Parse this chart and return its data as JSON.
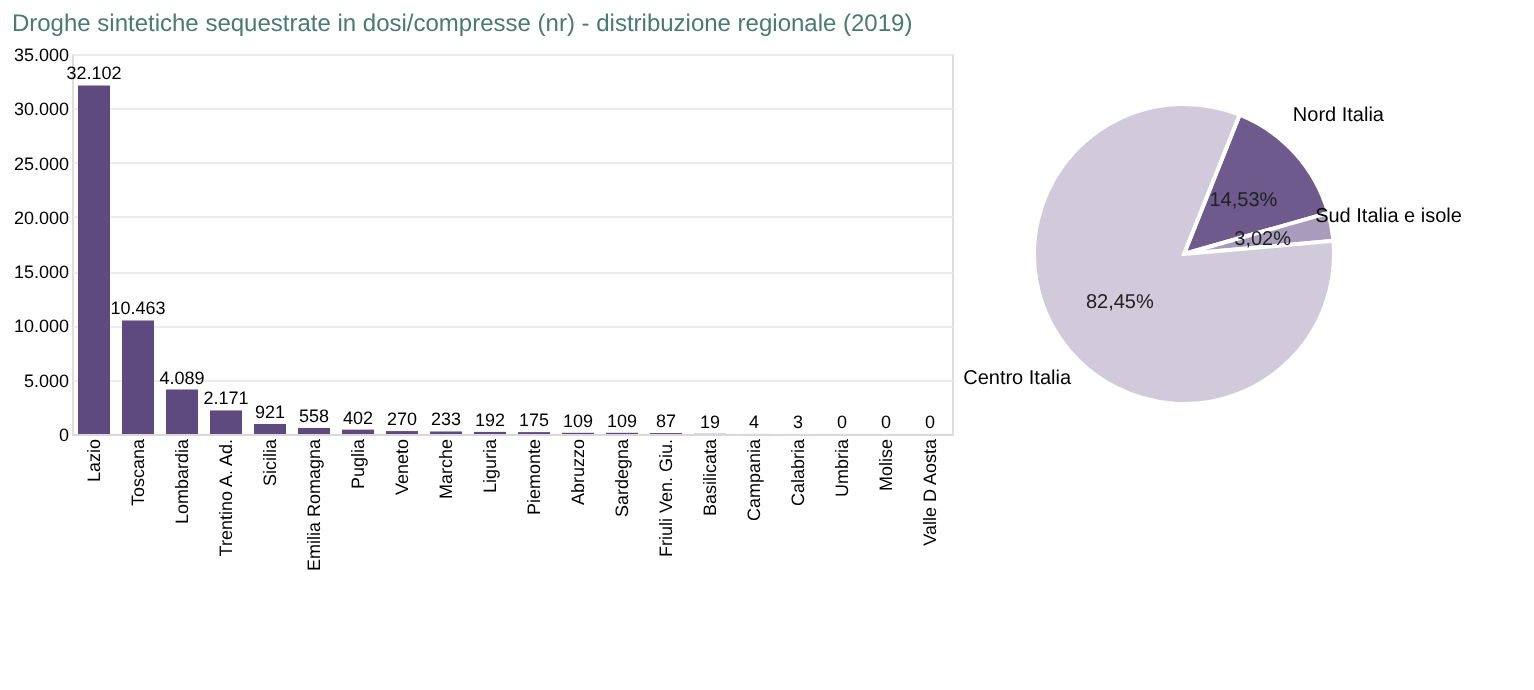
{
  "chart_data": [
    {
      "type": "bar",
      "title": "Droghe sintetiche sequestrate in dosi/compresse (nr) - distribuzione regionale (2019)",
      "categories": [
        "Lazio",
        "Toscana",
        "Lombardia",
        "Trentino A. Ad.",
        "Sicilia",
        "Emilia Romagna",
        "Puglia",
        "Veneto",
        "Marche",
        "Liguria",
        "Piemonte",
        "Abruzzo",
        "Sardegna",
        "Friuli Ven. Giu.",
        "Basilicata",
        "Campania",
        "Calabria",
        "Umbria",
        "Molise",
        "Valle D Aosta"
      ],
      "values": [
        32102,
        10463,
        4089,
        2171,
        921,
        558,
        402,
        270,
        233,
        192,
        175,
        109,
        109,
        87,
        19,
        4,
        3,
        0,
        0,
        0
      ],
      "value_labels": [
        "32.102",
        "10.463",
        "4.089",
        "2.171",
        "921",
        "558",
        "402",
        "270",
        "233",
        "192",
        "175",
        "109",
        "109",
        "87",
        "19",
        "4",
        "3",
        "0",
        "0",
        "0"
      ],
      "color": "#5e4a7e",
      "ylim": [
        0,
        35000
      ],
      "yticks": [
        {
          "value": 0,
          "label": "0"
        },
        {
          "value": 5000,
          "label": "5.000"
        },
        {
          "value": 10000,
          "label": "10.000"
        },
        {
          "value": 15000,
          "label": "15.000"
        },
        {
          "value": 20000,
          "label": "20.000"
        },
        {
          "value": 25000,
          "label": "25.000"
        },
        {
          "value": 30000,
          "label": "30.000"
        },
        {
          "value": 35000,
          "label": "35.000"
        }
      ],
      "grid": "y"
    },
    {
      "type": "pie",
      "categories": [
        "Nord Italia",
        "Sud Italia e isole",
        "Centro Italia"
      ],
      "values": [
        14.53,
        3.02,
        82.45
      ],
      "value_labels": [
        "14,53%",
        "3,02%",
        "82,45%"
      ],
      "colors": [
        "#6e5a8c",
        "#a89bbb",
        "#d0cadb"
      ]
    }
  ]
}
